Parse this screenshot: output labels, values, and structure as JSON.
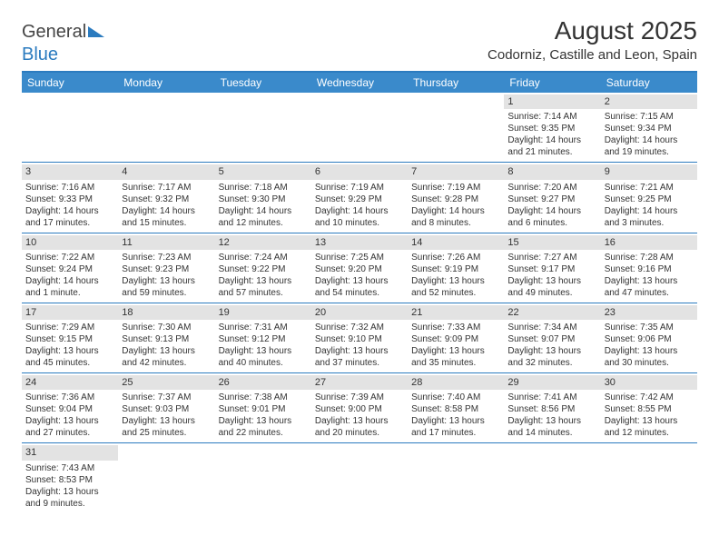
{
  "brand": {
    "name_gray": "General",
    "name_blue": "Blue"
  },
  "title": "August 2025",
  "location": "Codorniz, Castille and Leon, Spain",
  "colors": {
    "header_bg": "#3a8acb",
    "border": "#2b7bbf",
    "daybar": "#e3e3e3",
    "text": "#333333"
  },
  "weekdays": [
    "Sunday",
    "Monday",
    "Tuesday",
    "Wednesday",
    "Thursday",
    "Friday",
    "Saturday"
  ],
  "weeks": [
    [
      null,
      null,
      null,
      null,
      null,
      {
        "n": "1",
        "sunrise": "Sunrise: 7:14 AM",
        "sunset": "Sunset: 9:35 PM",
        "d1": "Daylight: 14 hours",
        "d2": "and 21 minutes."
      },
      {
        "n": "2",
        "sunrise": "Sunrise: 7:15 AM",
        "sunset": "Sunset: 9:34 PM",
        "d1": "Daylight: 14 hours",
        "d2": "and 19 minutes."
      }
    ],
    [
      {
        "n": "3",
        "sunrise": "Sunrise: 7:16 AM",
        "sunset": "Sunset: 9:33 PM",
        "d1": "Daylight: 14 hours",
        "d2": "and 17 minutes."
      },
      {
        "n": "4",
        "sunrise": "Sunrise: 7:17 AM",
        "sunset": "Sunset: 9:32 PM",
        "d1": "Daylight: 14 hours",
        "d2": "and 15 minutes."
      },
      {
        "n": "5",
        "sunrise": "Sunrise: 7:18 AM",
        "sunset": "Sunset: 9:30 PM",
        "d1": "Daylight: 14 hours",
        "d2": "and 12 minutes."
      },
      {
        "n": "6",
        "sunrise": "Sunrise: 7:19 AM",
        "sunset": "Sunset: 9:29 PM",
        "d1": "Daylight: 14 hours",
        "d2": "and 10 minutes."
      },
      {
        "n": "7",
        "sunrise": "Sunrise: 7:19 AM",
        "sunset": "Sunset: 9:28 PM",
        "d1": "Daylight: 14 hours",
        "d2": "and 8 minutes."
      },
      {
        "n": "8",
        "sunrise": "Sunrise: 7:20 AM",
        "sunset": "Sunset: 9:27 PM",
        "d1": "Daylight: 14 hours",
        "d2": "and 6 minutes."
      },
      {
        "n": "9",
        "sunrise": "Sunrise: 7:21 AM",
        "sunset": "Sunset: 9:25 PM",
        "d1": "Daylight: 14 hours",
        "d2": "and 3 minutes."
      }
    ],
    [
      {
        "n": "10",
        "sunrise": "Sunrise: 7:22 AM",
        "sunset": "Sunset: 9:24 PM",
        "d1": "Daylight: 14 hours",
        "d2": "and 1 minute."
      },
      {
        "n": "11",
        "sunrise": "Sunrise: 7:23 AM",
        "sunset": "Sunset: 9:23 PM",
        "d1": "Daylight: 13 hours",
        "d2": "and 59 minutes."
      },
      {
        "n": "12",
        "sunrise": "Sunrise: 7:24 AM",
        "sunset": "Sunset: 9:22 PM",
        "d1": "Daylight: 13 hours",
        "d2": "and 57 minutes."
      },
      {
        "n": "13",
        "sunrise": "Sunrise: 7:25 AM",
        "sunset": "Sunset: 9:20 PM",
        "d1": "Daylight: 13 hours",
        "d2": "and 54 minutes."
      },
      {
        "n": "14",
        "sunrise": "Sunrise: 7:26 AM",
        "sunset": "Sunset: 9:19 PM",
        "d1": "Daylight: 13 hours",
        "d2": "and 52 minutes."
      },
      {
        "n": "15",
        "sunrise": "Sunrise: 7:27 AM",
        "sunset": "Sunset: 9:17 PM",
        "d1": "Daylight: 13 hours",
        "d2": "and 49 minutes."
      },
      {
        "n": "16",
        "sunrise": "Sunrise: 7:28 AM",
        "sunset": "Sunset: 9:16 PM",
        "d1": "Daylight: 13 hours",
        "d2": "and 47 minutes."
      }
    ],
    [
      {
        "n": "17",
        "sunrise": "Sunrise: 7:29 AM",
        "sunset": "Sunset: 9:15 PM",
        "d1": "Daylight: 13 hours",
        "d2": "and 45 minutes."
      },
      {
        "n": "18",
        "sunrise": "Sunrise: 7:30 AM",
        "sunset": "Sunset: 9:13 PM",
        "d1": "Daylight: 13 hours",
        "d2": "and 42 minutes."
      },
      {
        "n": "19",
        "sunrise": "Sunrise: 7:31 AM",
        "sunset": "Sunset: 9:12 PM",
        "d1": "Daylight: 13 hours",
        "d2": "and 40 minutes."
      },
      {
        "n": "20",
        "sunrise": "Sunrise: 7:32 AM",
        "sunset": "Sunset: 9:10 PM",
        "d1": "Daylight: 13 hours",
        "d2": "and 37 minutes."
      },
      {
        "n": "21",
        "sunrise": "Sunrise: 7:33 AM",
        "sunset": "Sunset: 9:09 PM",
        "d1": "Daylight: 13 hours",
        "d2": "and 35 minutes."
      },
      {
        "n": "22",
        "sunrise": "Sunrise: 7:34 AM",
        "sunset": "Sunset: 9:07 PM",
        "d1": "Daylight: 13 hours",
        "d2": "and 32 minutes."
      },
      {
        "n": "23",
        "sunrise": "Sunrise: 7:35 AM",
        "sunset": "Sunset: 9:06 PM",
        "d1": "Daylight: 13 hours",
        "d2": "and 30 minutes."
      }
    ],
    [
      {
        "n": "24",
        "sunrise": "Sunrise: 7:36 AM",
        "sunset": "Sunset: 9:04 PM",
        "d1": "Daylight: 13 hours",
        "d2": "and 27 minutes."
      },
      {
        "n": "25",
        "sunrise": "Sunrise: 7:37 AM",
        "sunset": "Sunset: 9:03 PM",
        "d1": "Daylight: 13 hours",
        "d2": "and 25 minutes."
      },
      {
        "n": "26",
        "sunrise": "Sunrise: 7:38 AM",
        "sunset": "Sunset: 9:01 PM",
        "d1": "Daylight: 13 hours",
        "d2": "and 22 minutes."
      },
      {
        "n": "27",
        "sunrise": "Sunrise: 7:39 AM",
        "sunset": "Sunset: 9:00 PM",
        "d1": "Daylight: 13 hours",
        "d2": "and 20 minutes."
      },
      {
        "n": "28",
        "sunrise": "Sunrise: 7:40 AM",
        "sunset": "Sunset: 8:58 PM",
        "d1": "Daylight: 13 hours",
        "d2": "and 17 minutes."
      },
      {
        "n": "29",
        "sunrise": "Sunrise: 7:41 AM",
        "sunset": "Sunset: 8:56 PM",
        "d1": "Daylight: 13 hours",
        "d2": "and 14 minutes."
      },
      {
        "n": "30",
        "sunrise": "Sunrise: 7:42 AM",
        "sunset": "Sunset: 8:55 PM",
        "d1": "Daylight: 13 hours",
        "d2": "and 12 minutes."
      }
    ],
    [
      {
        "n": "31",
        "sunrise": "Sunrise: 7:43 AM",
        "sunset": "Sunset: 8:53 PM",
        "d1": "Daylight: 13 hours",
        "d2": "and 9 minutes."
      },
      null,
      null,
      null,
      null,
      null,
      null
    ]
  ]
}
